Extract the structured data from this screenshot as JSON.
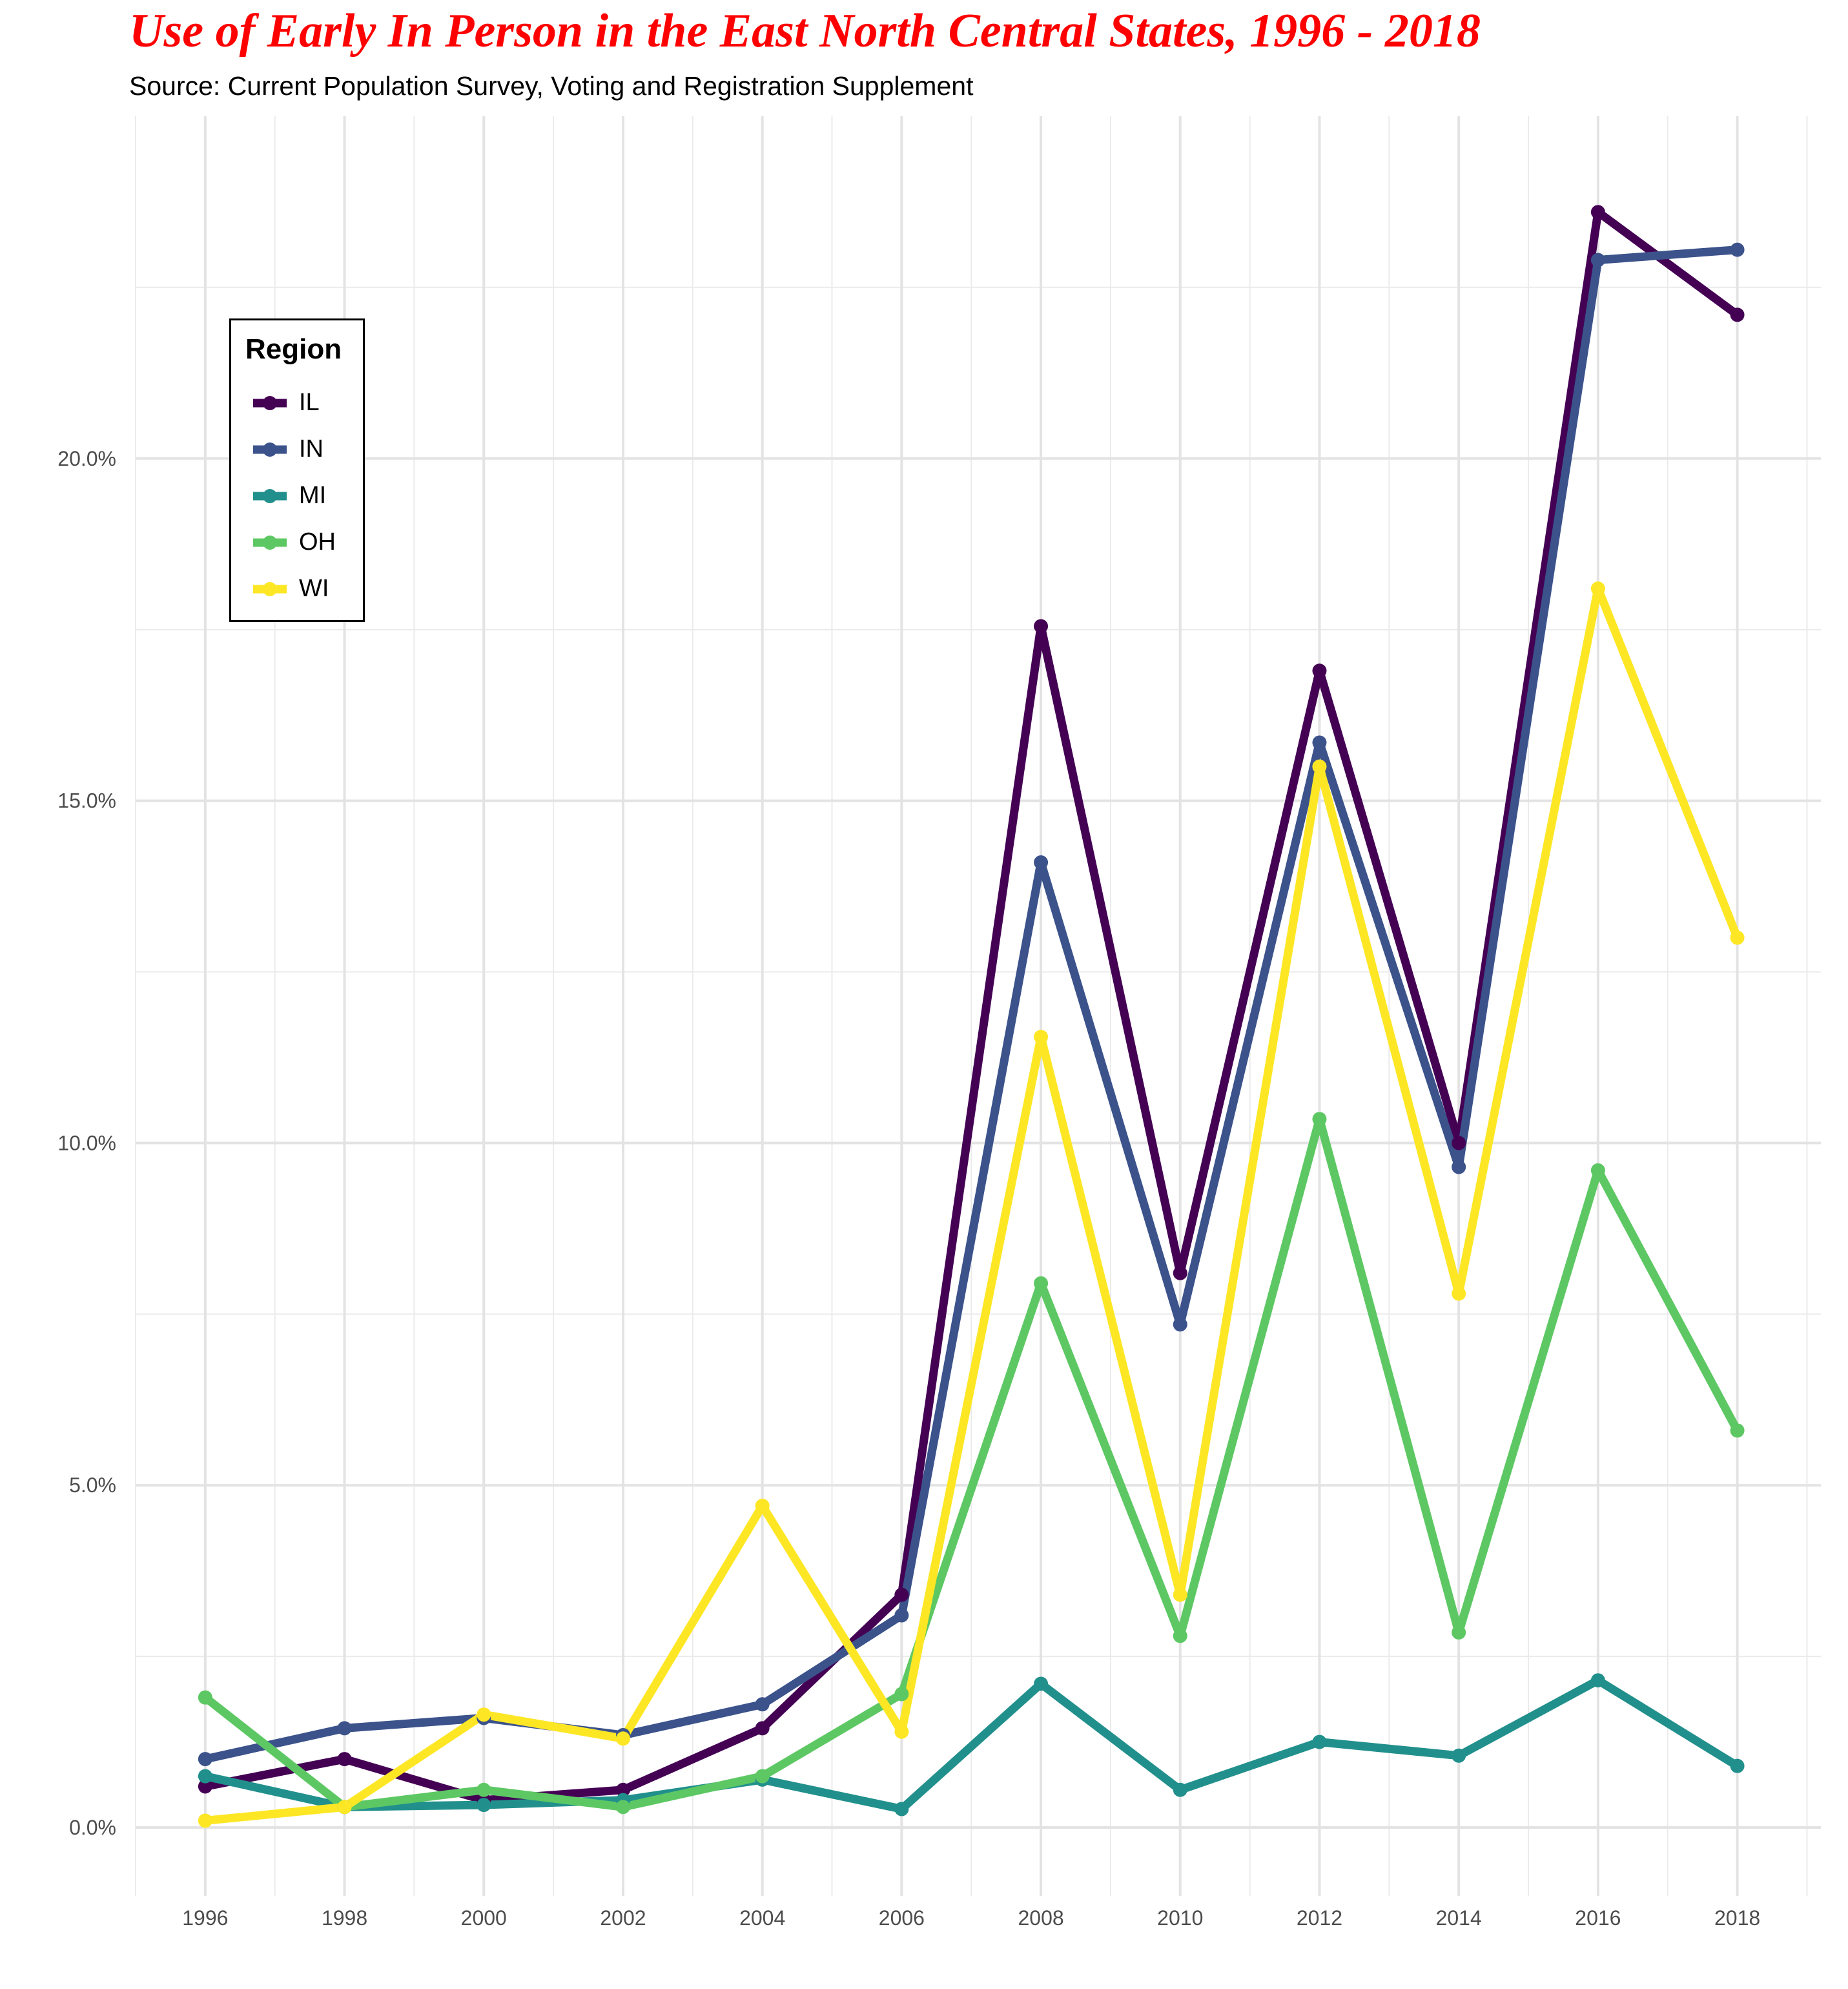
{
  "chart_data": {
    "type": "line",
    "title": "Use of Early In Person in the East North Central States, 1996 - 2018",
    "subtitle": "Source: Current Population Survey, Voting and Registration Supplement",
    "x": [
      1996,
      1998,
      2000,
      2002,
      2004,
      2006,
      2008,
      2010,
      2012,
      2014,
      2016,
      2018
    ],
    "x_tick_labels": [
      "1996",
      "1998",
      "2000",
      "2002",
      "2004",
      "2006",
      "2008",
      "2010",
      "2012",
      "2014",
      "2016",
      "2018"
    ],
    "y_tick_values": [
      0,
      5,
      10,
      15,
      20
    ],
    "y_tick_labels": [
      "0.0%",
      "5.0%",
      "10.0%",
      "15.0%",
      "20.0%"
    ],
    "xlim": [
      1995,
      2019.2
    ],
    "ylim": [
      -1,
      25
    ],
    "grid": true,
    "legend": {
      "title": "Region",
      "placement": "top-left"
    },
    "series": [
      {
        "name": "IL",
        "color": "#440154",
        "values": [
          0.6,
          1.0,
          0.4,
          0.55,
          1.45,
          3.4,
          17.55,
          8.1,
          16.9,
          10.0,
          23.6,
          22.1
        ]
      },
      {
        "name": "IN",
        "color": "#3B528B",
        "values": [
          1.0,
          1.45,
          1.6,
          1.35,
          1.8,
          3.1,
          14.1,
          7.35,
          15.85,
          9.65,
          22.9,
          23.05
        ]
      },
      {
        "name": "MI",
        "color": "#21908C",
        "values": [
          0.75,
          0.3,
          0.33,
          0.4,
          0.7,
          0.27,
          2.1,
          0.55,
          1.25,
          1.05,
          2.15,
          0.9
        ]
      },
      {
        "name": "OH",
        "color": "#5DC863",
        "values": [
          1.9,
          0.3,
          0.55,
          0.3,
          0.75,
          1.95,
          7.95,
          2.8,
          10.35,
          2.85,
          9.6,
          5.8
        ]
      },
      {
        "name": "WI",
        "color": "#FDE725",
        "values": [
          0.1,
          0.3,
          1.65,
          1.3,
          4.7,
          1.4,
          11.55,
          3.4,
          15.5,
          7.8,
          18.1,
          13.0
        ]
      }
    ]
  }
}
